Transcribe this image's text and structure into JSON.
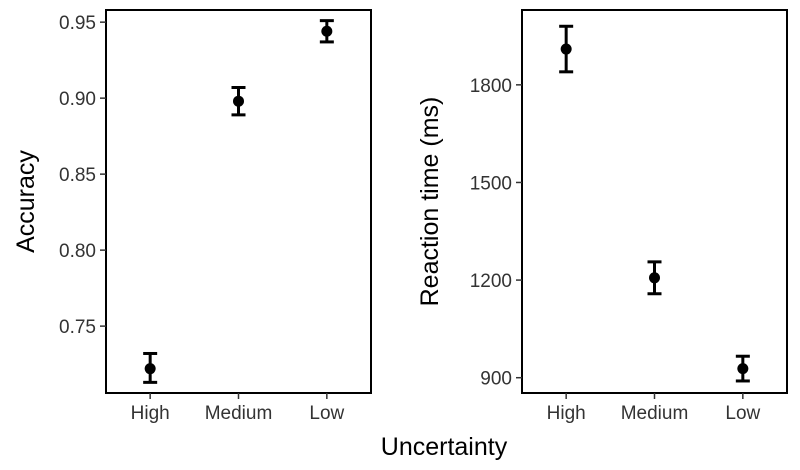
{
  "shared_xlabel": "Uncertainty",
  "chart_data": [
    {
      "type": "scatter",
      "error_bars": true,
      "categories": [
        "High",
        "Medium",
        "Low"
      ],
      "values": [
        0.722,
        0.898,
        0.944
      ],
      "error_low": [
        0.713,
        0.889,
        0.937
      ],
      "error_high": [
        0.732,
        0.907,
        0.951
      ],
      "xlabel": "",
      "ylabel": "Accuracy",
      "yticks": [
        0.75,
        0.8,
        0.85,
        0.9,
        0.95
      ],
      "ytick_labels": [
        "0.75",
        "0.80",
        "0.85",
        "0.90",
        "0.95"
      ],
      "ylim": [
        0.706,
        0.958
      ],
      "grid": false,
      "point_color": "#000000"
    },
    {
      "type": "scatter",
      "error_bars": true,
      "categories": [
        "High",
        "Medium",
        "Low"
      ],
      "values": [
        1910,
        1207,
        928
      ],
      "error_low": [
        1840,
        1158,
        890
      ],
      "error_high": [
        1980,
        1256,
        966
      ],
      "xlabel": "",
      "ylabel": "Reaction time (ms)",
      "yticks": [
        900,
        1200,
        1500,
        1800
      ],
      "ytick_labels": [
        "900",
        "1200",
        "1500",
        "1800"
      ],
      "ylim": [
        853,
        2030
      ],
      "grid": false,
      "point_color": "#000000"
    }
  ]
}
